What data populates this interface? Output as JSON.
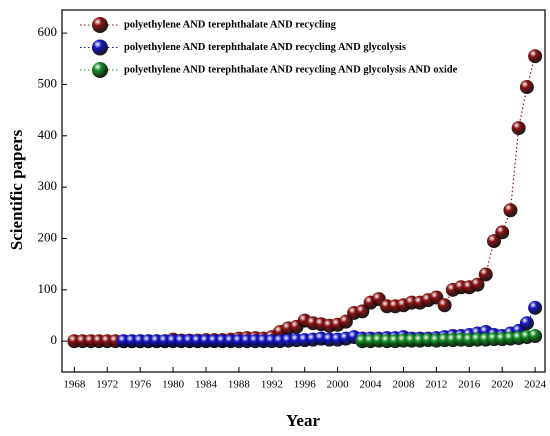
{
  "chart_data": {
    "type": "scatter",
    "x_label": "Year",
    "y_label": "Scientific papers",
    "xlim": [
      1966.5,
      2025.2
    ],
    "ylim": [
      -60,
      645
    ],
    "xticks": [
      1968,
      1972,
      1976,
      1980,
      1984,
      1988,
      1992,
      1996,
      2000,
      2004,
      2008,
      2012,
      2016,
      2020,
      2024
    ],
    "yticks": [
      0,
      100,
      200,
      300,
      400,
      500,
      600
    ],
    "legend": "top-left",
    "series": [
      {
        "name": "polyethylene AND terephthalate AND recycling",
        "color": "#8b1414",
        "x": [
          1968,
          1969,
          1970,
          1971,
          1972,
          1973,
          1974,
          1975,
          1976,
          1977,
          1978,
          1979,
          1980,
          1981,
          1982,
          1983,
          1984,
          1985,
          1986,
          1987,
          1988,
          1989,
          1990,
          1991,
          1992,
          1993,
          1994,
          1995,
          1996,
          1997,
          1998,
          1999,
          2000,
          2001,
          2002,
          2003,
          2004,
          2005,
          2006,
          2007,
          2008,
          2009,
          2010,
          2011,
          2012,
          2013,
          2014,
          2015,
          2016,
          2017,
          2018,
          2019,
          2020,
          2021,
          2022,
          2023,
          2024
        ],
        "values": [
          0,
          0,
          0,
          0,
          0,
          0,
          0,
          0,
          0,
          0,
          0,
          0,
          3,
          1,
          1,
          1,
          2,
          2,
          2,
          3,
          5,
          6,
          6,
          5,
          8,
          18,
          25,
          28,
          40,
          35,
          33,
          30,
          32,
          38,
          55,
          58,
          75,
          82,
          68,
          68,
          70,
          75,
          75,
          80,
          85,
          70,
          100,
          105,
          105,
          110,
          130,
          195,
          212,
          255,
          415,
          495,
          555
        ]
      },
      {
        "name": "polyethylene AND terephthalate AND recycling AND glycolysis",
        "color": "#1616c8",
        "x": [
          1974,
          1975,
          1976,
          1977,
          1978,
          1979,
          1980,
          1981,
          1982,
          1983,
          1984,
          1985,
          1986,
          1987,
          1988,
          1989,
          1990,
          1991,
          1992,
          1993,
          1994,
          1995,
          1996,
          1997,
          1998,
          1999,
          2000,
          2001,
          2002,
          2003,
          2004,
          2005,
          2006,
          2007,
          2008,
          2009,
          2010,
          2011,
          2012,
          2013,
          2014,
          2015,
          2016,
          2017,
          2018,
          2019,
          2020,
          2021,
          2022,
          2023,
          2024
        ],
        "values": [
          0,
          0,
          0,
          0,
          0,
          0,
          0,
          0,
          0,
          0,
          0,
          0,
          0,
          0,
          0,
          0,
          0,
          0,
          0,
          0,
          1,
          2,
          2,
          3,
          5,
          3,
          3,
          5,
          8,
          5,
          5,
          5,
          6,
          6,
          8,
          5,
          5,
          5,
          6,
          8,
          10,
          10,
          12,
          15,
          18,
          12,
          10,
          15,
          20,
          35,
          65
        ]
      },
      {
        "name": "polyethylene AND terephthalate AND recycling AND glycolysis AND oxide",
        "color": "#168c26",
        "x": [
          2003,
          2004,
          2005,
          2006,
          2007,
          2008,
          2009,
          2010,
          2011,
          2012,
          2013,
          2014,
          2015,
          2016,
          2017,
          2018,
          2019,
          2020,
          2021,
          2022,
          2023,
          2024
        ],
        "values": [
          0,
          0,
          1,
          0,
          0,
          1,
          1,
          1,
          2,
          1,
          2,
          2,
          3,
          2,
          3,
          3,
          4,
          4,
          5,
          6,
          8,
          10
        ]
      }
    ]
  }
}
